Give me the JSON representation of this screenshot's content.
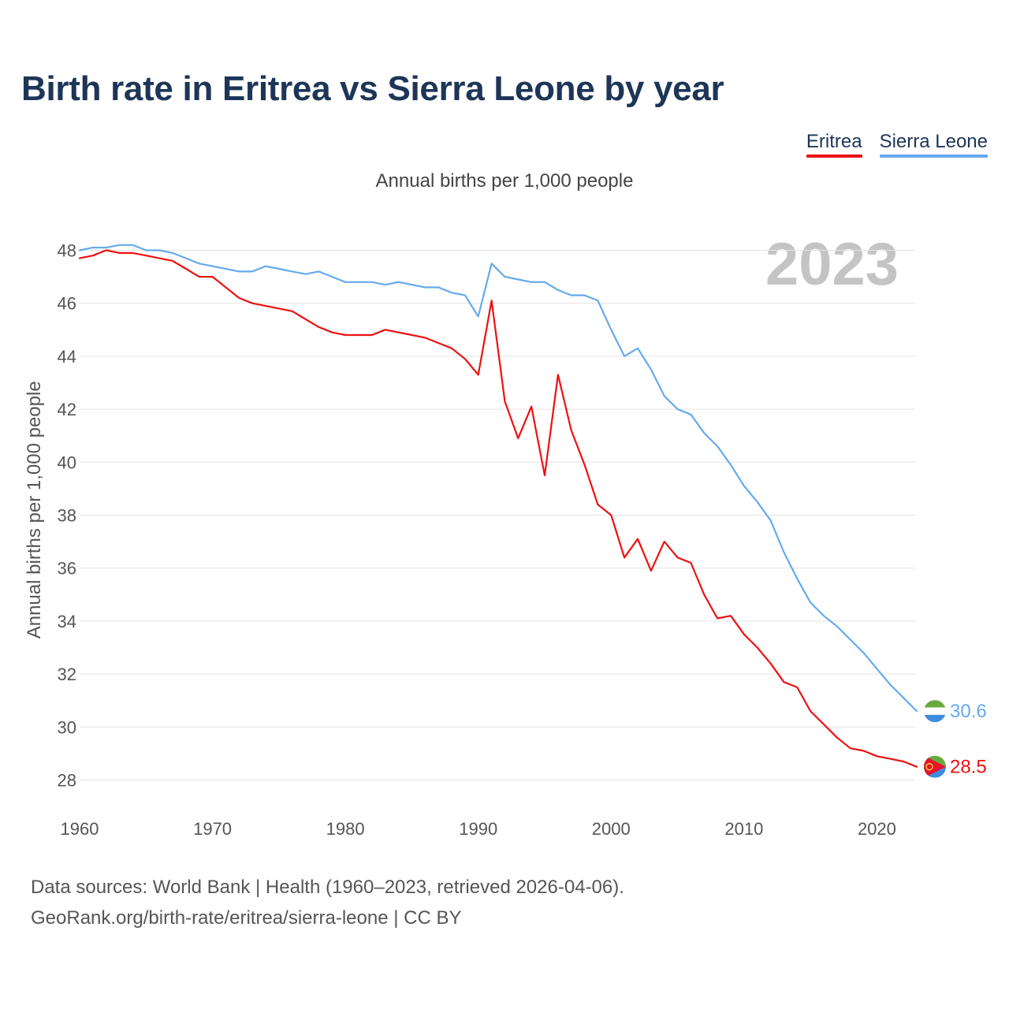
{
  "title": "Birth rate in Eritrea vs Sierra Leone by year",
  "legend": [
    {
      "label": "Eritrea",
      "color": "#ee1111"
    },
    {
      "label": "Sierra Leone",
      "color": "#66aaee"
    }
  ],
  "watermark_year": "2023",
  "footer": {
    "source": "Data sources: World Bank | Health (1960–2023, retrieved 2026-04-06).",
    "credit": "GeoRank.org/birth-rate/eritrea/sierra-leone | CC BY"
  },
  "chart_data": {
    "type": "line",
    "title": "Birth rate in Eritrea vs Sierra Leone by year",
    "subtitle": "Annual births per 1,000 people",
    "ylabel": "Annual births per 1,000 people",
    "xlabel": "",
    "xlim": [
      1960,
      2023
    ],
    "ylim": [
      27,
      49
    ],
    "yticks": [
      28,
      30,
      32,
      34,
      36,
      38,
      40,
      42,
      44,
      46,
      48
    ],
    "xticks": [
      1960,
      1970,
      1980,
      1990,
      2000,
      2010,
      2020
    ],
    "grid": true,
    "x": [
      1960,
      1961,
      1962,
      1963,
      1964,
      1965,
      1966,
      1967,
      1968,
      1969,
      1970,
      1971,
      1972,
      1973,
      1974,
      1975,
      1976,
      1977,
      1978,
      1979,
      1980,
      1981,
      1982,
      1983,
      1984,
      1985,
      1986,
      1987,
      1988,
      1989,
      1990,
      1991,
      1992,
      1993,
      1994,
      1995,
      1996,
      1997,
      1998,
      1999,
      2000,
      2001,
      2002,
      2003,
      2004,
      2005,
      2006,
      2007,
      2008,
      2009,
      2010,
      2011,
      2012,
      2013,
      2014,
      2015,
      2016,
      2017,
      2018,
      2019,
      2020,
      2021,
      2022,
      2023
    ],
    "series": [
      {
        "name": "Eritrea",
        "color": "#ee1111",
        "end_label": "28.5",
        "flag": "eritrea-flag",
        "values": [
          47.7,
          47.8,
          48.0,
          47.9,
          47.9,
          47.8,
          47.7,
          47.6,
          47.3,
          47.0,
          47.0,
          46.6,
          46.2,
          46.0,
          45.9,
          45.8,
          45.7,
          45.4,
          45.1,
          44.9,
          44.8,
          44.8,
          44.8,
          45.0,
          44.9,
          44.8,
          44.7,
          44.5,
          44.3,
          43.9,
          43.3,
          46.1,
          42.3,
          40.9,
          42.1,
          39.5,
          43.3,
          41.2,
          39.9,
          38.4,
          38.0,
          36.4,
          37.1,
          35.9,
          37.0,
          36.4,
          36.2,
          35.0,
          34.1,
          34.2,
          33.5,
          33.0,
          32.4,
          31.7,
          31.5,
          30.6,
          30.1,
          29.6,
          29.2,
          29.1,
          28.9,
          28.8,
          28.7,
          28.5
        ]
      },
      {
        "name": "Sierra Leone",
        "color": "#66aaee",
        "end_label": "30.6",
        "flag": "sierra-leone-flag",
        "values": [
          48.0,
          48.1,
          48.1,
          48.2,
          48.2,
          48.0,
          48.0,
          47.9,
          47.7,
          47.5,
          47.4,
          47.3,
          47.2,
          47.2,
          47.4,
          47.3,
          47.2,
          47.1,
          47.2,
          47.0,
          46.8,
          46.8,
          46.8,
          46.7,
          46.8,
          46.7,
          46.6,
          46.6,
          46.4,
          46.3,
          45.5,
          47.5,
          47.0,
          46.9,
          46.8,
          46.8,
          46.5,
          46.3,
          46.3,
          46.1,
          45.0,
          44.0,
          44.3,
          43.5,
          42.5,
          42.0,
          41.8,
          41.1,
          40.6,
          39.9,
          39.1,
          38.5,
          37.8,
          36.6,
          35.6,
          34.7,
          34.2,
          33.8,
          33.3,
          32.8,
          32.2,
          31.6,
          31.1,
          30.6
        ]
      }
    ]
  }
}
